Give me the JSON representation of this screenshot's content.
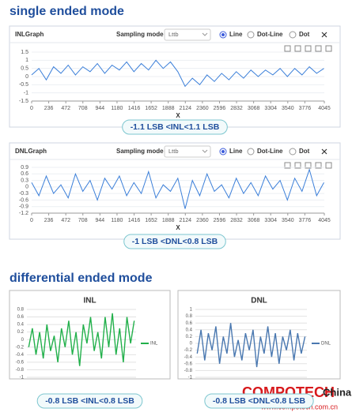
{
  "headings": [
    "single ended mode",
    "differential ended mode"
  ],
  "watermark": {
    "brand": "COMPOTECH",
    "region": "China",
    "url": "www.compotech.com.cn"
  },
  "chart_data": [
    {
      "type": "line",
      "title": "INLGraph",
      "toolbar": {
        "sampling_label": "Sampling mode",
        "sampling_value": "Lttb",
        "modes": [
          "Line",
          "Dot-Line",
          "Dot"
        ],
        "selected_mode": "Line"
      },
      "xlabel": "X",
      "note": "-1.1 LSB <INL<1.1 LSB",
      "grid": true,
      "x": [
        0,
        101,
        202,
        303,
        404,
        505,
        606,
        707,
        808,
        909,
        1010,
        1111,
        1212,
        1313,
        1414,
        1515,
        1616,
        1717,
        1818,
        1919,
        2020,
        2121,
        2222,
        2323,
        2424,
        2525,
        2626,
        2727,
        2828,
        2929,
        3030,
        3131,
        3232,
        3333,
        3434,
        3535,
        3636,
        3737,
        3838,
        3939,
        4040
      ],
      "series": [
        {
          "color": "#3b7fd9",
          "values": [
            0.1,
            0.5,
            -0.2,
            0.6,
            0.2,
            0.7,
            0.1,
            0.6,
            0.3,
            0.8,
            0.2,
            0.7,
            0.4,
            0.9,
            0.3,
            0.8,
            0.4,
            1.0,
            0.5,
            0.9,
            0.3,
            -0.6,
            -0.1,
            -0.5,
            0.1,
            -0.3,
            0.2,
            -0.2,
            0.3,
            -0.1,
            0.4,
            0,
            0.4,
            0.1,
            0.5,
            0,
            0.5,
            0.1,
            0.6,
            0.2,
            0.5
          ]
        }
      ],
      "xlim": [
        0,
        4045
      ],
      "xticks": [
        0,
        236,
        472,
        708,
        944,
        1180,
        1416,
        1652,
        1888,
        2124,
        2360,
        2596,
        2832,
        3068,
        3304,
        3540,
        3776,
        4045
      ],
      "ylim": [
        -1.5,
        1.5
      ],
      "yticks": [
        1.5,
        1,
        0.5,
        0,
        -0.5,
        -1,
        -1.5
      ]
    },
    {
      "type": "line",
      "title": "DNLGraph",
      "toolbar": {
        "sampling_label": "Sampling mode",
        "sampling_value": "Lttb",
        "modes": [
          "Line",
          "Dot-Line",
          "Dot"
        ],
        "selected_mode": "Line"
      },
      "xlabel": "X",
      "note": "-1 LSB <DNL<0.8 LSB",
      "grid": true,
      "x": [
        0,
        101,
        202,
        303,
        404,
        505,
        606,
        707,
        808,
        909,
        1010,
        1111,
        1212,
        1313,
        1414,
        1515,
        1616,
        1717,
        1818,
        1919,
        2020,
        2121,
        2222,
        2323,
        2424,
        2525,
        2626,
        2727,
        2828,
        2929,
        3030,
        3131,
        3232,
        3333,
        3434,
        3535,
        3636,
        3737,
        3838,
        3939,
        4040
      ],
      "series": [
        {
          "color": "#3b7fd9",
          "values": [
            0.2,
            -0.4,
            0.5,
            -0.3,
            0.1,
            -0.5,
            0.6,
            -0.2,
            0.3,
            -0.6,
            0.4,
            -0.1,
            0.5,
            -0.4,
            0.2,
            -0.3,
            0.7,
            -0.5,
            0.1,
            -0.2,
            0.4,
            -1.0,
            0.3,
            -0.4,
            0.6,
            -0.2,
            0.1,
            -0.5,
            0.4,
            -0.3,
            0.2,
            -0.4,
            0.5,
            -0.1,
            0.3,
            -0.6,
            0.4,
            -0.2,
            0.8,
            -0.4,
            0.2
          ]
        }
      ],
      "xlim": [
        0,
        4045
      ],
      "xticks": [
        0,
        236,
        472,
        708,
        944,
        1180,
        1416,
        1652,
        1888,
        2124,
        2360,
        2596,
        2832,
        3068,
        3304,
        3540,
        3776,
        4045
      ],
      "ylim": [
        -1.2,
        0.9
      ],
      "yticks": [
        0.9,
        0.6,
        0.3,
        0,
        -0.3,
        -0.6,
        -0.9,
        -1.2
      ]
    },
    {
      "type": "line",
      "title": "INL",
      "note": "-0.8 LSB <INL<0.8 LSB",
      "grid": true,
      "series": [
        {
          "name": "INL",
          "color": "#22b04b",
          "values": [
            -0.2,
            0.3,
            -0.4,
            0.2,
            -0.5,
            0.4,
            -0.3,
            0.1,
            -0.6,
            0.3,
            -0.2,
            0.5,
            -0.4,
            0.2,
            -0.7,
            0.4,
            -0.1,
            0.6,
            -0.3,
            0.2,
            -0.5,
            0.6,
            -0.2,
            0.7,
            -0.4,
            0.3,
            -0.6,
            0.6,
            -0.1,
            0.5
          ]
        }
      ],
      "ylim": [
        -1,
        0.8
      ],
      "yticks": [
        0.8,
        0.6,
        0.4,
        0.2,
        0,
        -0.2,
        -0.4,
        -0.6,
        -0.8,
        -1
      ]
    },
    {
      "type": "line",
      "title": "DNL",
      "note": "-0.8 LSB <DNL<0.8 LSB",
      "grid": true,
      "series": [
        {
          "name": "DNL",
          "color": "#4a78b0",
          "values": [
            -0.3,
            0.4,
            -0.5,
            0.3,
            -0.2,
            0.5,
            -0.6,
            0.2,
            -0.3,
            0.6,
            -0.4,
            0.1,
            -0.5,
            0.3,
            -0.2,
            0.4,
            -0.7,
            0.2,
            -0.3,
            0.5,
            -0.4,
            0.3,
            -0.6,
            0.2,
            -0.2,
            0.4,
            -0.5,
            0.3,
            -0.3,
            0.2
          ]
        }
      ],
      "ylim": [
        -1,
        1
      ],
      "yticks": [
        1,
        0.8,
        0.6,
        0.4,
        0.2,
        0,
        -0.2,
        -0.4,
        -0.6,
        -0.8,
        -1
      ]
    }
  ]
}
